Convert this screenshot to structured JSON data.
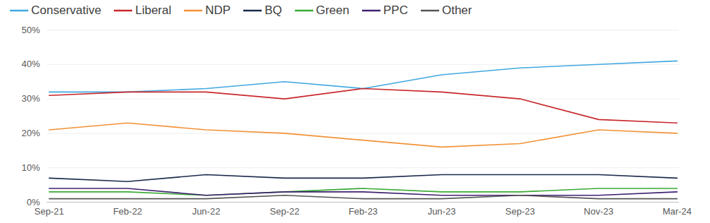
{
  "chart_data": {
    "type": "line",
    "categories": [
      "Sep-21",
      "Feb-22",
      "Jun-22",
      "Sep-22",
      "Feb-23",
      "Jun-23",
      "Sep-23",
      "Nov-23",
      "Mar-24"
    ],
    "series": [
      {
        "name": "Conservative",
        "color": "#41a8e1",
        "values": [
          32,
          32,
          33,
          35,
          33,
          37,
          39,
          40,
          41
        ]
      },
      {
        "name": "Liberal",
        "color": "#c8282c",
        "values": [
          31,
          32,
          32,
          30,
          33,
          32,
          30,
          24,
          23
        ]
      },
      {
        "name": "NDP",
        "color": "#f39237",
        "values": [
          21,
          23,
          21,
          20,
          18,
          16,
          17,
          21,
          20
        ]
      },
      {
        "name": "BQ",
        "color": "#1b2a4a",
        "values": [
          7,
          6,
          8,
          7,
          7,
          8,
          8,
          8,
          7
        ]
      },
      {
        "name": "Green",
        "color": "#3aa935",
        "values": [
          3,
          3,
          2,
          3,
          4,
          3,
          3,
          4,
          4
        ]
      },
      {
        "name": "PPC",
        "color": "#3f2170",
        "values": [
          4,
          4,
          2,
          3,
          3,
          2,
          2,
          2,
          3
        ]
      },
      {
        "name": "Other",
        "color": "#555555",
        "values": [
          1,
          1,
          1,
          2,
          1,
          1,
          2,
          1,
          1
        ]
      }
    ],
    "ylim": [
      0,
      50
    ],
    "yticks": [
      {
        "value": 0,
        "label": "0%"
      },
      {
        "value": 10,
        "label": "10%"
      },
      {
        "value": 20,
        "label": "20%"
      },
      {
        "value": 30,
        "label": "30%"
      },
      {
        "value": 40,
        "label": "40%"
      },
      {
        "value": 50,
        "label": "50%"
      }
    ],
    "grid": true,
    "legend": "top"
  }
}
